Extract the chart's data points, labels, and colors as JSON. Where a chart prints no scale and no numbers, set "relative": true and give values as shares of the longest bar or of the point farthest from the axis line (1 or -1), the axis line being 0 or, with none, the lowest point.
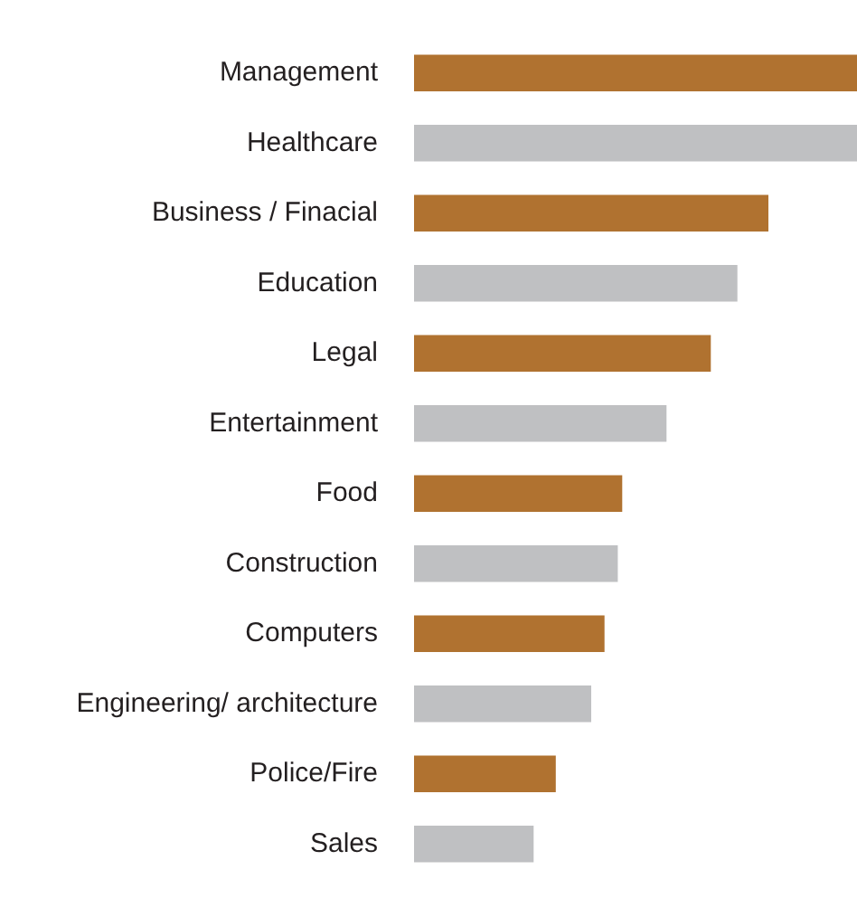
{
  "chart_data": {
    "type": "bar",
    "orientation": "horizontal",
    "relative": true,
    "categories": [
      "Management",
      "Healthcare",
      "Business / Finacial",
      "Education",
      "Legal",
      "Entertainment",
      "Food",
      "Construction",
      "Computers",
      "Engineering/ architecture",
      "Police/Fire",
      "Sales"
    ],
    "values": [
      1,
      1,
      0.8,
      0.73,
      0.67,
      0.57,
      0.47,
      0.46,
      0.43,
      0.4,
      0.32,
      0.27
    ],
    "colors": [
      "#b07230",
      "#bfc0c2",
      "#b07230",
      "#bfc0c2",
      "#b07230",
      "#bfc0c2",
      "#b07230",
      "#bfc0c2",
      "#b07230",
      "#bfc0c2",
      "#b07230",
      "#bfc0c2"
    ]
  }
}
